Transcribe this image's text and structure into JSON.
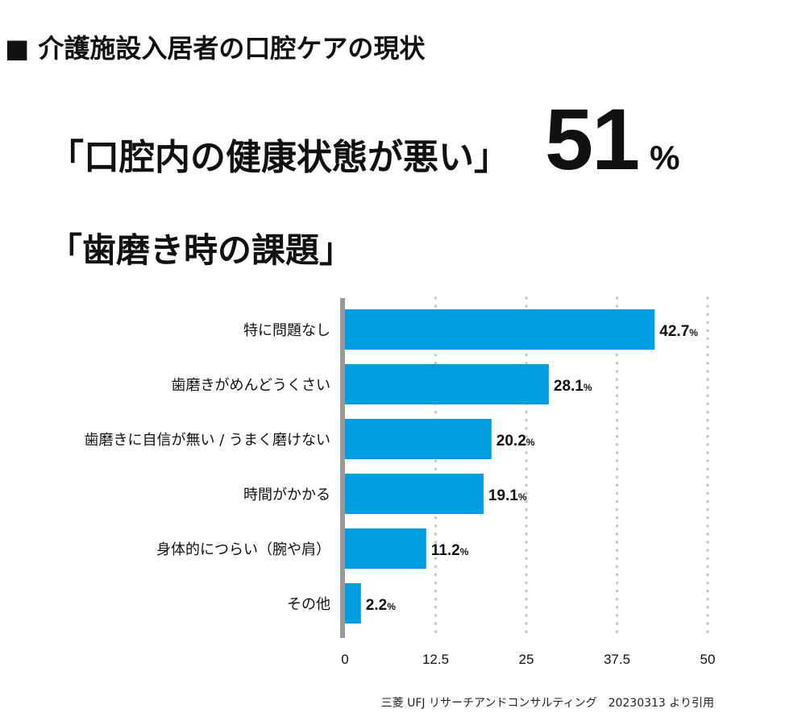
{
  "section_title": "■ 介護施設入居者の口腔ケアの現状",
  "headline": {
    "label": "「口腔内の健康状態が悪い」",
    "value": "51",
    "unit": "%"
  },
  "subheading": "「歯磨き時の課題」",
  "chart_data": {
    "type": "bar",
    "orientation": "horizontal",
    "categories": [
      "特に問題なし",
      "歯磨きがめんどうくさい",
      "歯磨きに自信が無い / うまく磨けない",
      "時間がかかる",
      "身体的につらい（腕や肩）",
      "その他"
    ],
    "values": [
      42.7,
      28.1,
      20.2,
      19.1,
      11.2,
      2.2
    ],
    "value_unit": "%",
    "xlim": [
      0,
      50
    ],
    "xticks": [
      "0",
      "12.5",
      "25",
      "37.5",
      "50"
    ],
    "grid": true,
    "bar_color": "#009de3",
    "axis_color": "#999999",
    "grid_color": "#c8c8c8"
  },
  "source": "三菱 UFJ リサーチアンドコンサルティング　20230313 より引用"
}
